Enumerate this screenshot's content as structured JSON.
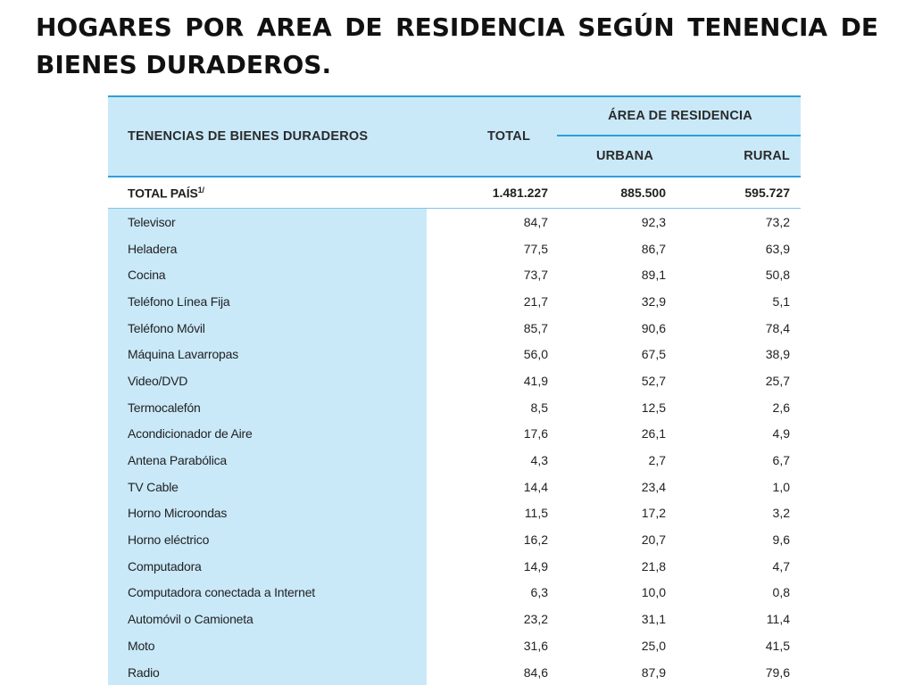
{
  "title": "HOGARES POR AREA DE RESIDENCIA SEGÚN TENENCIA DE BIENES DURADEROS.",
  "table": {
    "header": {
      "label_col": "TENENCIAS DE BIENES DURADEROS",
      "total_col": "TOTAL",
      "area_group": "ÁREA DE RESIDENCIA",
      "urbana_col": "URBANA",
      "rural_col": "RURAL"
    },
    "total_row": {
      "label": "TOTAL PAÍS",
      "footnote": "1/",
      "total": "1.481.227",
      "urbana": "885.500",
      "rural": "595.727"
    },
    "rows": [
      {
        "label": "Televisor",
        "total": "84,7",
        "urbana": "92,3",
        "rural": "73,2"
      },
      {
        "label": "Heladera",
        "total": "77,5",
        "urbana": "86,7",
        "rural": "63,9"
      },
      {
        "label": "Cocina",
        "total": "73,7",
        "urbana": "89,1",
        "rural": "50,8"
      },
      {
        "label": "Teléfono Línea Fija",
        "total": "21,7",
        "urbana": "32,9",
        "rural": "5,1"
      },
      {
        "label": "Teléfono Móvil",
        "total": "85,7",
        "urbana": "90,6",
        "rural": "78,4"
      },
      {
        "label": "Máquina Lavarropas",
        "total": "56,0",
        "urbana": "67,5",
        "rural": "38,9"
      },
      {
        "label": "Video/DVD",
        "total": "41,9",
        "urbana": "52,7",
        "rural": "25,7"
      },
      {
        "label": "Termocalefón",
        "total": "8,5",
        "urbana": "12,5",
        "rural": "2,6"
      },
      {
        "label": "Acondicionador de Aire",
        "total": "17,6",
        "urbana": "26,1",
        "rural": "4,9"
      },
      {
        "label": "Antena Parabólica",
        "total": "4,3",
        "urbana": "2,7",
        "rural": "6,7"
      },
      {
        "label": "TV Cable",
        "total": "14,4",
        "urbana": "23,4",
        "rural": "1,0"
      },
      {
        "label": "Horno Microondas",
        "total": "11,5",
        "urbana": "17,2",
        "rural": "3,2"
      },
      {
        "label": "Horno eléctrico",
        "total": "16,2",
        "urbana": "20,7",
        "rural": "9,6"
      },
      {
        "label": "Computadora",
        "total": "14,9",
        "urbana": "21,8",
        "rural": "4,7"
      },
      {
        "label": "Computadora conectada a Internet",
        "total": "6,3",
        "urbana": "10,0",
        "rural": "0,8"
      },
      {
        "label": "Automóvil o Camioneta",
        "total": "23,2",
        "urbana": "31,1",
        "rural": "11,4"
      },
      {
        "label": "Moto",
        "total": "31,6",
        "urbana": "25,0",
        "rural": "41,5"
      },
      {
        "label": "Radio",
        "total": "84,6",
        "urbana": "87,9",
        "rural": "79,6"
      }
    ]
  }
}
